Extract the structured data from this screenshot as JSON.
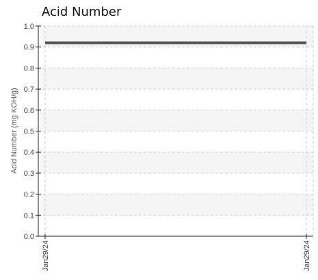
{
  "chart_data": {
    "type": "line",
    "title": "Acid Number",
    "xlabel": "",
    "ylabel": "Acid Number (mg KOH/g)",
    "x": [
      "Jan29/24",
      "Jan29/24"
    ],
    "series": [
      {
        "values": [
          0.92,
          0.92
        ]
      }
    ],
    "ylim": [
      0,
      1.0
    ],
    "y_ticks": [
      "0.0",
      "0.1",
      "0.2",
      "0.3",
      "0.4",
      "0.5",
      "0.6",
      "0.7",
      "0.8",
      "0.9",
      "1.0"
    ],
    "grid": true,
    "line_color": "#555555",
    "band_color": "#f5f5f5"
  }
}
